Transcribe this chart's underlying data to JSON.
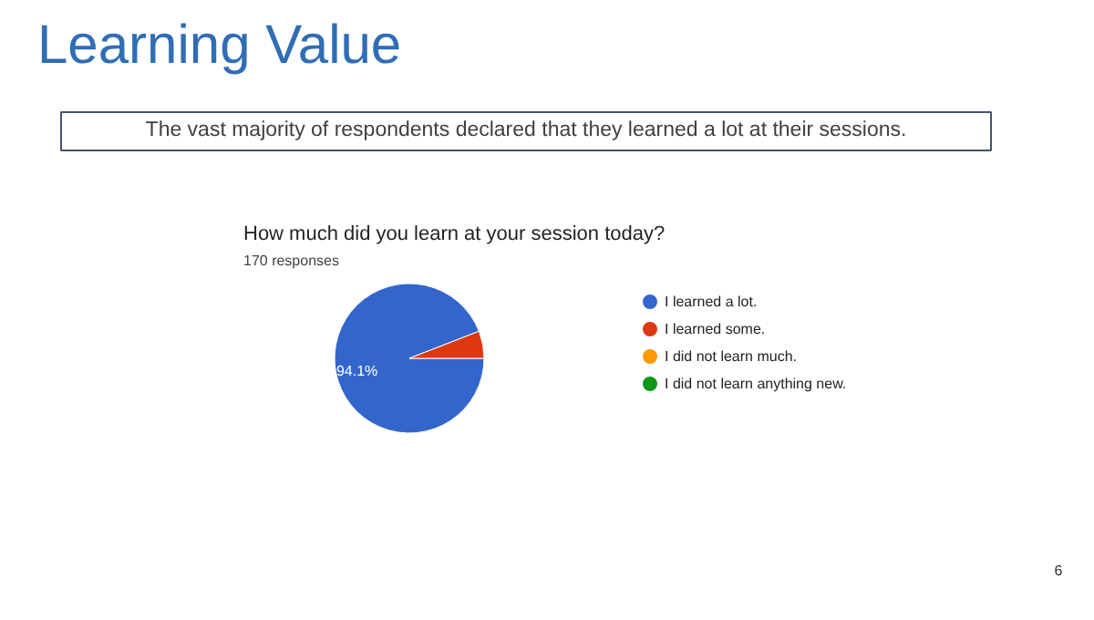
{
  "chart_data": {
    "type": "pie",
    "title": "How much did you learn at your session today?",
    "subtitle": "170 responses",
    "annotations": [
      "Learning Value",
      "The vast majority of respondents declared that they learned a lot at their sessions.",
      "6"
    ],
    "categories": [
      "I learned a lot.",
      "I learned some.",
      "I did not learn much.",
      "I did not learn anything new."
    ],
    "values": [
      94.1,
      5.9,
      0,
      0
    ],
    "colors": [
      "#3366cc",
      "#dc3912",
      "#ff9900",
      "#109618"
    ],
    "value_labels": [
      "94.1%",
      null,
      null,
      null
    ],
    "legend": "right"
  }
}
